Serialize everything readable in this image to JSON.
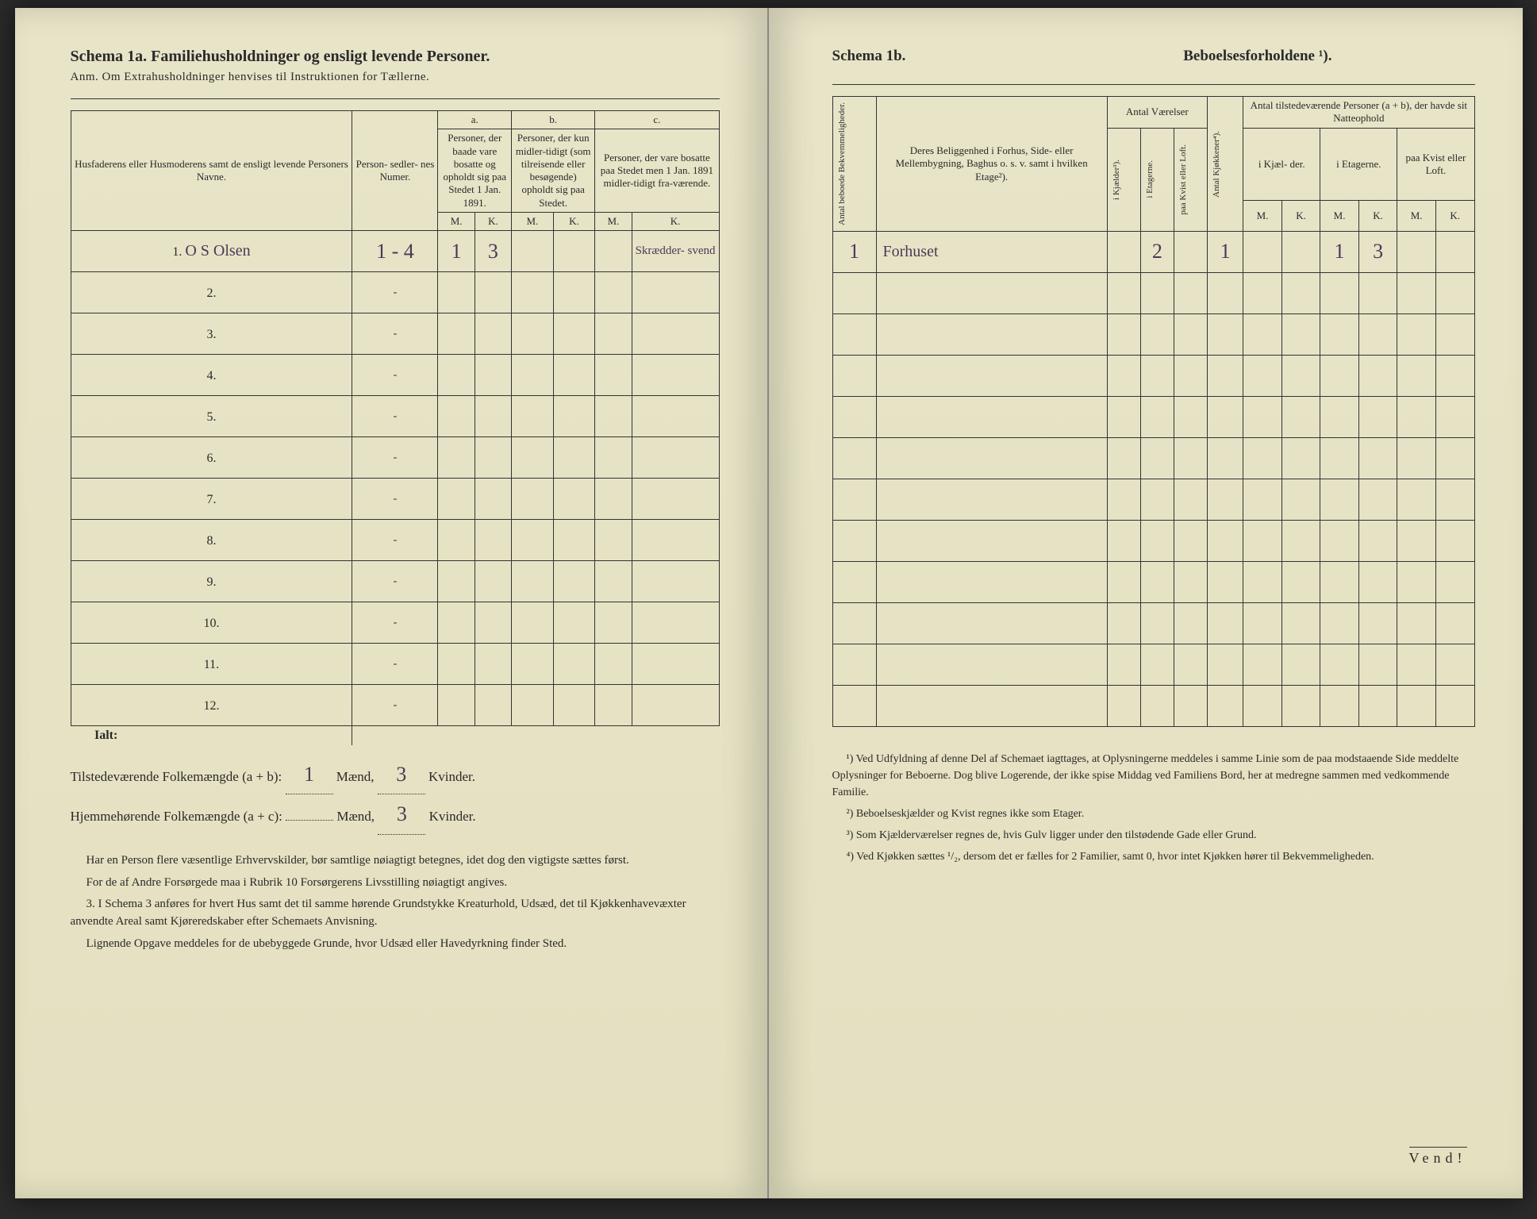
{
  "left": {
    "title": "Schema 1a.   Familiehusholdninger og ensligt levende Personer.",
    "subtitle": "Anm. Om Extrahusholdninger henvises til Instruktionen for Tællerne.",
    "headers": {
      "name": "Husfaderens eller Husmoderens samt de ensligt levende Personers Navne.",
      "person_num": "Person-\nsedler-\nnes\nNumer.",
      "a_label": "a.",
      "a_text": "Personer, der baade vare bosatte og opholdt sig paa Stedet 1 Jan. 1891.",
      "b_label": "b.",
      "b_text": "Personer, der kun midler-tidigt (som tilreisende eller besøgende) opholdt sig paa Stedet.",
      "c_label": "c.",
      "c_text": "Personer, der vare bosatte paa Stedet men 1 Jan. 1891 midler-tidigt fra-værende.",
      "M": "M.",
      "K": "K."
    },
    "rows": [
      {
        "n": "1.",
        "name": "O S Olsen",
        "pnum": "1 - 4",
        "aM": "1",
        "aK": "3",
        "bM": "",
        "bK": "",
        "cM": "",
        "cK": "Skrædder-\nsvend"
      },
      {
        "n": "2.",
        "name": "",
        "pnum": "-",
        "aM": "",
        "aK": "",
        "bM": "",
        "bK": "",
        "cM": "",
        "cK": ""
      },
      {
        "n": "3.",
        "name": "",
        "pnum": "-",
        "aM": "",
        "aK": "",
        "bM": "",
        "bK": "",
        "cM": "",
        "cK": ""
      },
      {
        "n": "4.",
        "name": "",
        "pnum": "-",
        "aM": "",
        "aK": "",
        "bM": "",
        "bK": "",
        "cM": "",
        "cK": ""
      },
      {
        "n": "5.",
        "name": "",
        "pnum": "-",
        "aM": "",
        "aK": "",
        "bM": "",
        "bK": "",
        "cM": "",
        "cK": ""
      },
      {
        "n": "6.",
        "name": "",
        "pnum": "-",
        "aM": "",
        "aK": "",
        "bM": "",
        "bK": "",
        "cM": "",
        "cK": ""
      },
      {
        "n": "7.",
        "name": "",
        "pnum": "-",
        "aM": "",
        "aK": "",
        "bM": "",
        "bK": "",
        "cM": "",
        "cK": ""
      },
      {
        "n": "8.",
        "name": "",
        "pnum": "-",
        "aM": "",
        "aK": "",
        "bM": "",
        "bK": "",
        "cM": "",
        "cK": ""
      },
      {
        "n": "9.",
        "name": "",
        "pnum": "-",
        "aM": "",
        "aK": "",
        "bM": "",
        "bK": "",
        "cM": "",
        "cK": ""
      },
      {
        "n": "10.",
        "name": "",
        "pnum": "-",
        "aM": "",
        "aK": "",
        "bM": "",
        "bK": "",
        "cM": "",
        "cK": ""
      },
      {
        "n": "11.",
        "name": "",
        "pnum": "-",
        "aM": "",
        "aK": "",
        "bM": "",
        "bK": "",
        "cM": "",
        "cK": ""
      },
      {
        "n": "12.",
        "name": "",
        "pnum": "-",
        "aM": "",
        "aK": "",
        "bM": "",
        "bK": "",
        "cM": "",
        "cK": ""
      }
    ],
    "ialt": "Ialt:",
    "totals": {
      "line1_label": "Tilstedeværende Folkemængde (a + b):",
      "line1_m": "1",
      "line1_mlabel": "Mænd,",
      "line1_k": "3",
      "line1_klabel": "Kvinder.",
      "line2_label": "Hjemmehørende Folkemængde (a + c):",
      "line2_m": "",
      "line2_mlabel": "Mænd,",
      "line2_k": "3",
      "line2_klabel": "Kvinder."
    },
    "body": [
      "Har en Person flere væsentlige Erhvervskilder, bør samtlige nøiagtigt betegnes, idet dog den vigtigste sættes først.",
      "For de af Andre Forsørgede maa i Rubrik 10 Forsørgerens Livsstilling nøiagtigt angives.",
      "3. I Schema 3 anføres for hvert Hus samt det til samme hørende Grundstykke Kreaturhold, Udsæd, det til Kjøkkenhavevæxter anvendte Areal samt Kjøreredskaber efter Schemaets Anvisning.",
      "Lignende Opgave meddeles for de ubebyggede Grunde, hvor Udsæd eller Havedyrkning finder Sted."
    ]
  },
  "right": {
    "title_left": "Schema 1b.",
    "title_right": "Beboelsesforholdene ¹).",
    "headers": {
      "antal_bekv": "Antal beboede\nBekvemmeligheder.",
      "beliggenhed": "Deres Beliggenhed i Forhus, Side- eller Mellembygning, Baghus o. s. v. samt i hvilken Etage²).",
      "antal_vaer": "Antal\nVærelser",
      "kj": "i Kjælder³).",
      "et": "i Etagerne.",
      "kvist": "paa Kvist eller\nLoft.",
      "kjokken": "Antal Kjøkkener⁴).",
      "present": "Antal tilstedeværende Personer (a + b), der havde sit Natteophold",
      "kjael": "i Kjæl-\nder.",
      "etag": "i\nEtagerne.",
      "loft": "paa\nKvist\neller\nLoft.",
      "M": "M.",
      "K": "K."
    },
    "rows": [
      {
        "n": "1",
        "loc": "Forhuset",
        "kj": "",
        "et": "2",
        "kv": "",
        "kk": "1",
        "kjM": "",
        "kjK": "",
        "etM": "1",
        "etK": "3",
        "loM": "",
        "loK": ""
      },
      {
        "n": "",
        "loc": "",
        "kj": "",
        "et": "",
        "kv": "",
        "kk": "",
        "kjM": "",
        "kjK": "",
        "etM": "",
        "etK": "",
        "loM": "",
        "loK": ""
      },
      {
        "n": "",
        "loc": "",
        "kj": "",
        "et": "",
        "kv": "",
        "kk": "",
        "kjM": "",
        "kjK": "",
        "etM": "",
        "etK": "",
        "loM": "",
        "loK": ""
      },
      {
        "n": "",
        "loc": "",
        "kj": "",
        "et": "",
        "kv": "",
        "kk": "",
        "kjM": "",
        "kjK": "",
        "etM": "",
        "etK": "",
        "loM": "",
        "loK": ""
      },
      {
        "n": "",
        "loc": "",
        "kj": "",
        "et": "",
        "kv": "",
        "kk": "",
        "kjM": "",
        "kjK": "",
        "etM": "",
        "etK": "",
        "loM": "",
        "loK": ""
      },
      {
        "n": "",
        "loc": "",
        "kj": "",
        "et": "",
        "kv": "",
        "kk": "",
        "kjM": "",
        "kjK": "",
        "etM": "",
        "etK": "",
        "loM": "",
        "loK": ""
      },
      {
        "n": "",
        "loc": "",
        "kj": "",
        "et": "",
        "kv": "",
        "kk": "",
        "kjM": "",
        "kjK": "",
        "etM": "",
        "etK": "",
        "loM": "",
        "loK": ""
      },
      {
        "n": "",
        "loc": "",
        "kj": "",
        "et": "",
        "kv": "",
        "kk": "",
        "kjM": "",
        "kjK": "",
        "etM": "",
        "etK": "",
        "loM": "",
        "loK": ""
      },
      {
        "n": "",
        "loc": "",
        "kj": "",
        "et": "",
        "kv": "",
        "kk": "",
        "kjM": "",
        "kjK": "",
        "etM": "",
        "etK": "",
        "loM": "",
        "loK": ""
      },
      {
        "n": "",
        "loc": "",
        "kj": "",
        "et": "",
        "kv": "",
        "kk": "",
        "kjM": "",
        "kjK": "",
        "etM": "",
        "etK": "",
        "loM": "",
        "loK": ""
      },
      {
        "n": "",
        "loc": "",
        "kj": "",
        "et": "",
        "kv": "",
        "kk": "",
        "kjM": "",
        "kjK": "",
        "etM": "",
        "etK": "",
        "loM": "",
        "loK": ""
      },
      {
        "n": "",
        "loc": "",
        "kj": "",
        "et": "",
        "kv": "",
        "kk": "",
        "kjM": "",
        "kjK": "",
        "etM": "",
        "etK": "",
        "loM": "",
        "loK": ""
      }
    ],
    "footnotes": [
      "¹) Ved Udfyldning af denne Del af Schemaet iagttages, at Oplysningerne meddeles i samme Linie som de paa modstaaende Side meddelte Oplysninger for Beboerne. Dog blive Logerende, der ikke spise Middag ved Familiens Bord, her at medregne sammen med vedkommende Familie.",
      "²) Beboelseskjælder og Kvist regnes ikke som Etager.",
      "³) Som Kjælderværelser regnes de, hvis Gulv ligger under den tilstødende Gade eller Grund.",
      "⁴) Ved Kjøkken sættes ¹/₂, dersom det er fælles for 2 Familier, samt 0, hvor intet Kjøkken hører til Bekvemmeligheden."
    ],
    "vend": "Vend!"
  },
  "colors": {
    "paper": "#e6e2c4",
    "ink": "#2a2a2a",
    "handwriting": "#4a3a55"
  }
}
